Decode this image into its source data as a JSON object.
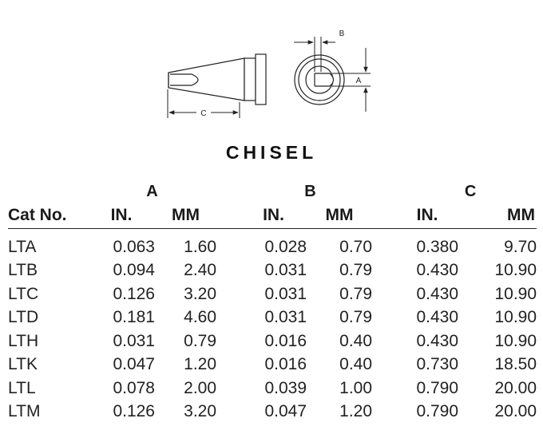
{
  "diagram": {
    "label_a": "A",
    "label_b": "B",
    "label_c": "C"
  },
  "title": "CHISEL",
  "table": {
    "groups": [
      "A",
      "B",
      "C"
    ],
    "columns": [
      "Cat No.",
      "IN.",
      "MM",
      "IN.",
      "MM",
      "IN.",
      "MM"
    ],
    "rows": [
      [
        "LTA",
        "0.063",
        "1.60",
        "0.028",
        "0.70",
        "0.380",
        "9.70"
      ],
      [
        "LTB",
        "0.094",
        "2.40",
        "0.031",
        "0.79",
        "0.430",
        "10.90"
      ],
      [
        "LTC",
        "0.126",
        "3.20",
        "0.031",
        "0.79",
        "0.430",
        "10.90"
      ],
      [
        "LTD",
        "0.181",
        "4.60",
        "0.031",
        "0.79",
        "0.430",
        "10.90"
      ],
      [
        "LTH",
        "0.031",
        "0.79",
        "0.016",
        "0.40",
        "0.430",
        "10.90"
      ],
      [
        "LTK",
        "0.047",
        "1.20",
        "0.016",
        "0.40",
        "0.730",
        "18.50"
      ],
      [
        "LTL",
        "0.078",
        "2.00",
        "0.039",
        "1.00",
        "0.790",
        "20.00"
      ],
      [
        "LTM",
        "0.126",
        "3.20",
        "0.047",
        "1.20",
        "0.790",
        "20.00"
      ]
    ]
  }
}
